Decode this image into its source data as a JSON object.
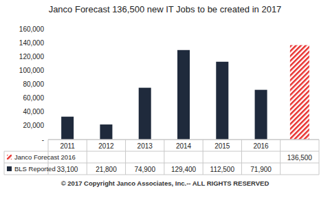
{
  "chart_data": {
    "type": "bar",
    "title": "Janco Forecast 136,500  new IT Jobs to be created in 2017",
    "categories": [
      "2011",
      "2012",
      "2013",
      "2014",
      "2015",
      "2016",
      null
    ],
    "series": [
      {
        "name": "Janco Forecast 2016",
        "color": "#e8312f",
        "values": [
          null,
          null,
          null,
          null,
          null,
          null,
          136500
        ],
        "value_labels": [
          null,
          null,
          null,
          null,
          null,
          null,
          "136,500"
        ]
      },
      {
        "name": "BLS Reported",
        "color": "#1f2a3c",
        "values": [
          33100,
          21800,
          74900,
          129400,
          112500,
          71900,
          null
        ],
        "value_labels": [
          "33,100",
          "21,800",
          "74,900",
          "129,400",
          "112,500",
          "71,900",
          null
        ]
      }
    ],
    "ylim": [
      0,
      160000
    ],
    "yticks": [
      {
        "value": 0,
        "label": "-"
      },
      {
        "value": 20000,
        "label": "20,000"
      },
      {
        "value": 40000,
        "label": "40,000"
      },
      {
        "value": 60000,
        "label": "60,000"
      },
      {
        "value": 80000,
        "label": "80,000"
      },
      {
        "value": 100000,
        "label": "100,000"
      },
      {
        "value": 120000,
        "label": "120,000"
      },
      {
        "value": 140000,
        "label": "140,000"
      },
      {
        "value": 160000,
        "label": "160,000"
      }
    ],
    "annotations": [
      "© 2017 Copyright Janco Associates, Inc.-- ALL RIGHTS RESERVED"
    ]
  }
}
